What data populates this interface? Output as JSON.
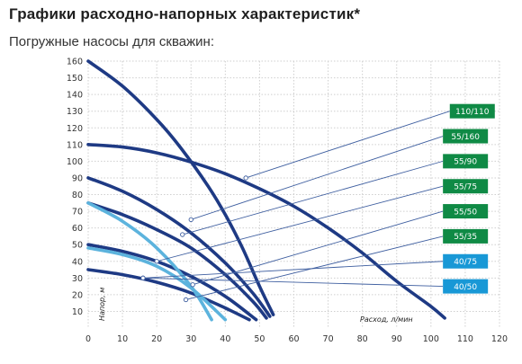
{
  "header": {
    "title": "Графики расходно-напорных характеристик*",
    "subtitle": "Погружные насосы для скважин:"
  },
  "colors": {
    "dark_series": "#1e3a84",
    "light_series": "#5cb3dd",
    "label_green": "#0f8a45",
    "label_blue": "#1898d6",
    "grid": "#cfcfcf",
    "leader": "#3f5fa0"
  },
  "chart_data": {
    "type": "line",
    "title": "Графики расходно-напорных характеристик*",
    "subtitle": "Погружные насосы для скважин:",
    "xlabel": "Расход, л/мин",
    "ylabel": "Напор, м",
    "xlim": [
      0,
      120
    ],
    "ylim": [
      0,
      160
    ],
    "x_ticks": [
      0,
      10,
      20,
      30,
      40,
      50,
      60,
      70,
      80,
      90,
      100,
      110,
      120
    ],
    "y_ticks": [
      10,
      20,
      30,
      40,
      50,
      60,
      70,
      80,
      90,
      100,
      110,
      120,
      130,
      140,
      150,
      160
    ],
    "grid": true,
    "series": [
      {
        "name": "110/110",
        "color": "dark",
        "x": [
          0,
          10,
          20,
          30,
          40,
          50,
          60,
          70,
          80,
          90,
          100,
          104
        ],
        "y": [
          110,
          108.5,
          105,
          99.5,
          92.5,
          83.5,
          73,
          60,
          45,
          28,
          13,
          6
        ],
        "marker_at": [
          46,
          90
        ],
        "label_box": [
          105.5,
          130
        ]
      },
      {
        "name": "55/160",
        "color": "dark",
        "x": [
          0,
          10,
          20,
          27,
          35,
          40,
          45,
          50,
          54
        ],
        "y": [
          160,
          145,
          125,
          108,
          85,
          68,
          48,
          25,
          8
        ],
        "marker_at": [
          30,
          65
        ],
        "label_box": [
          103.5,
          115
        ]
      },
      {
        "name": "55/90",
        "color": "dark",
        "x": [
          0,
          10,
          20,
          30,
          40,
          48,
          53
        ],
        "y": [
          90,
          82,
          71,
          57,
          39,
          21,
          7
        ],
        "marker_at": [
          27.5,
          56
        ],
        "label_box": [
          103.5,
          100
        ]
      },
      {
        "name": "55/75",
        "color": "dark",
        "x": [
          0,
          10,
          20,
          30,
          40,
          48,
          52
        ],
        "y": [
          75,
          68,
          59,
          48,
          32,
          16,
          6
        ],
        "marker_at": [
          20,
          40
        ],
        "label_box": [
          103.5,
          85
        ]
      },
      {
        "name": "55/50",
        "color": "dark",
        "x": [
          0,
          10,
          20,
          30,
          40,
          49
        ],
        "y": [
          50,
          46,
          40,
          31,
          19,
          5
        ],
        "marker_at": [
          30.5,
          26
        ],
        "label_box": [
          103.5,
          70
        ]
      },
      {
        "name": "55/35",
        "color": "dark",
        "x": [
          0,
          10,
          20,
          30,
          40,
          47
        ],
        "y": [
          35,
          32,
          27.5,
          21,
          12,
          5
        ],
        "marker_at": [
          28.5,
          17
        ],
        "label_box": [
          103.5,
          55
        ]
      },
      {
        "name": "40/75",
        "color": "light",
        "x": [
          0,
          10,
          20,
          30,
          36
        ],
        "y": [
          75,
          64,
          48,
          25,
          5
        ],
        "marker_at": [
          16,
          30
        ],
        "label_box": [
          103.5,
          40
        ]
      },
      {
        "name": "40/50",
        "color": "light",
        "x": [
          0,
          10,
          20,
          30,
          40
        ],
        "y": [
          48,
          44,
          37,
          24,
          5
        ],
        "marker_at": [
          16,
          30
        ],
        "label_box": [
          103.5,
          25
        ]
      }
    ],
    "label_box_colors": [
      "green",
      "green",
      "green",
      "green",
      "green",
      "green",
      "blue",
      "blue"
    ]
  }
}
